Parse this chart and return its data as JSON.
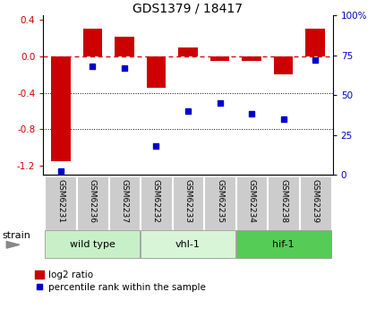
{
  "title": "GDS1379 / 18417",
  "samples": [
    "GSM62231",
    "GSM62236",
    "GSM62237",
    "GSM62232",
    "GSM62233",
    "GSM62235",
    "GSM62234",
    "GSM62238",
    "GSM62239"
  ],
  "log2_ratio": [
    -1.15,
    0.3,
    0.22,
    -0.35,
    0.1,
    -0.05,
    -0.05,
    -0.2,
    0.3
  ],
  "percentile_rank": [
    2,
    68,
    67,
    18,
    40,
    45,
    38,
    35,
    72
  ],
  "groups": [
    {
      "label": "wild type",
      "indices": [
        0,
        1,
        2
      ],
      "color": "#c8f0c8"
    },
    {
      "label": "vhl-1",
      "indices": [
        3,
        4,
        5
      ],
      "color": "#d8f5d8"
    },
    {
      "label": "hif-1",
      "indices": [
        6,
        7,
        8
      ],
      "color": "#55cc55"
    }
  ],
  "bar_color": "#cc0000",
  "dot_color": "#0000cc",
  "ylim_left": [
    -1.3,
    0.45
  ],
  "ylim_right": [
    0,
    100
  ],
  "yticks_left": [
    0.4,
    0.0,
    -0.4,
    -0.8,
    -1.2
  ],
  "yticks_right": [
    100,
    75,
    50,
    25,
    0
  ],
  "dotted_lines": [
    -0.4,
    -0.8
  ],
  "background_color": "#ffffff",
  "bar_width": 0.6,
  "sample_box_color": "#cccccc",
  "legend_bar_label": "log2 ratio",
  "legend_dot_label": "percentile rank within the sample",
  "strain_label": "strain"
}
